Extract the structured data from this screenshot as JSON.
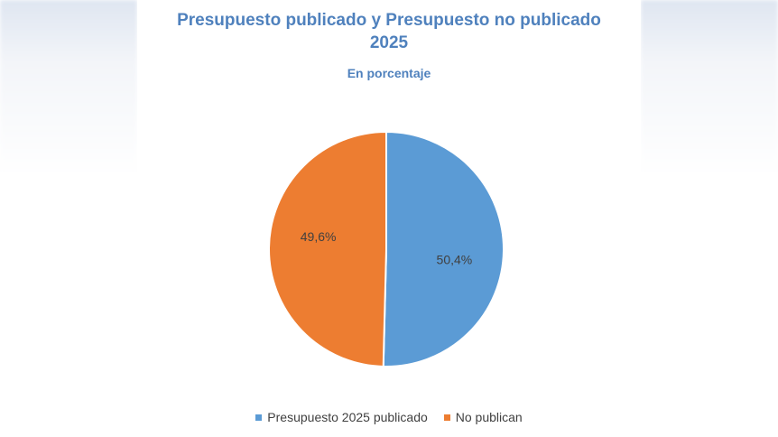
{
  "chart_data": {
    "type": "pie",
    "title": "Presupuesto publicado y Presupuesto no publicado 2025",
    "title_line1": "Presupuesto publicado y Presupuesto no publicado",
    "title_line2": "2025",
    "subtitle": "En porcentaje",
    "categories": [
      "Presupuesto 2025 publicado",
      "No publican"
    ],
    "values": [
      50.4,
      49.6
    ],
    "data_labels": [
      "50,4%",
      "49,6%"
    ],
    "colors": [
      "#5b9bd5",
      "#ed7d31"
    ],
    "legend_position": "bottom"
  }
}
